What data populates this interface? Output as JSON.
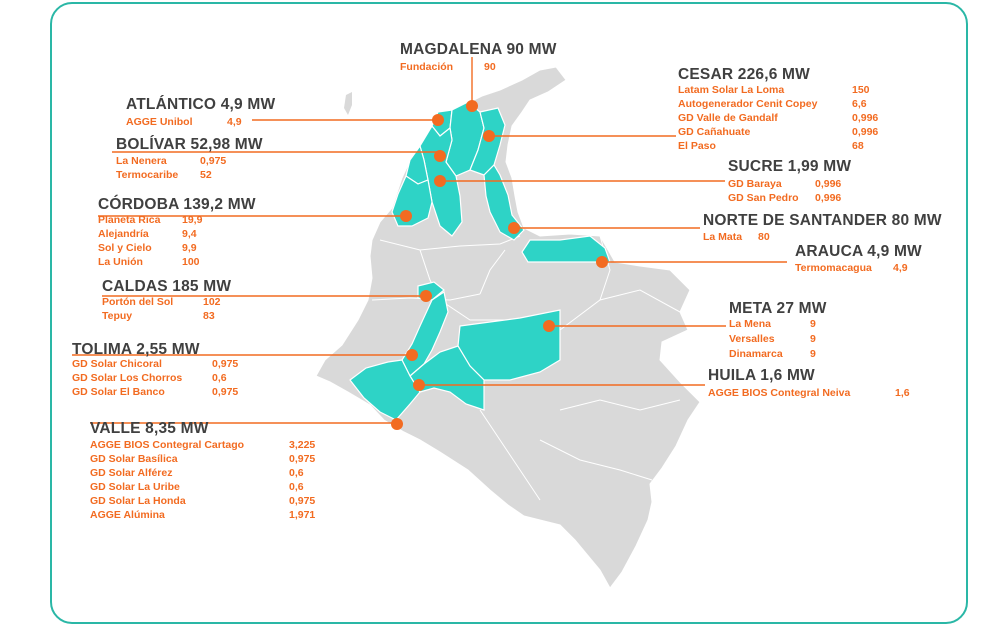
{
  "colors": {
    "frame": "#2ab7a6",
    "highlight": "#2ed3c6",
    "land": "#d9d9d9",
    "leader": "#f26b21",
    "title": "#404040",
    "entry": "#f26b21"
  },
  "regions": [
    {
      "id": "magdalena",
      "title": "MAGDALENA 90 MW",
      "entries": [
        {
          "name": "Fundación",
          "value": "90"
        }
      ]
    },
    {
      "id": "cesar",
      "title": "CESAR 226,6 MW",
      "entries": [
        {
          "name": "Latam Solar La Loma",
          "value": "150"
        },
        {
          "name": "Autogenerador Cenit Copey",
          "value": "6,6"
        },
        {
          "name": "GD Valle de Gandalf",
          "value": "0,996"
        },
        {
          "name": "GD Cañahuate",
          "value": "0,996"
        },
        {
          "name": "El Paso",
          "value": "68"
        }
      ]
    },
    {
      "id": "atlantico",
      "title": "ATLÁNTICO 4,9 MW",
      "entries": [
        {
          "name": "AGGE Unibol",
          "value": "4,9"
        }
      ]
    },
    {
      "id": "bolivar",
      "title": "BOLÍVAR 52,98 MW",
      "entries": [
        {
          "name": "La Nenera",
          "value": "0,975"
        },
        {
          "name": "Termocaribe",
          "value": "52"
        }
      ]
    },
    {
      "id": "sucre",
      "title": "SUCRE 1,99 MW",
      "entries": [
        {
          "name": "GD Baraya",
          "value": "0,996"
        },
        {
          "name": "GD San Pedro",
          "value": "0,996"
        }
      ]
    },
    {
      "id": "cordoba",
      "title": "CÓRDOBA 139,2 MW",
      "entries": [
        {
          "name": "Planeta Rica",
          "value": "19,9"
        },
        {
          "name": "Alejandría",
          "value": "9,4"
        },
        {
          "name": "Sol y Cielo",
          "value": "9,9"
        },
        {
          "name": "La Unión",
          "value": "100"
        }
      ]
    },
    {
      "id": "norte_santander",
      "title": "NORTE DE SANTANDER 80 MW",
      "entries": [
        {
          "name": "La Mata",
          "value": "80"
        }
      ]
    },
    {
      "id": "arauca",
      "title": "ARAUCA 4,9 MW",
      "entries": [
        {
          "name": "Termomacagua",
          "value": "4,9"
        }
      ]
    },
    {
      "id": "caldas",
      "title": "CALDAS 185 MW",
      "entries": [
        {
          "name": "Portón del Sol",
          "value": "102"
        },
        {
          "name": "Tepuy",
          "value": "83"
        }
      ]
    },
    {
      "id": "meta",
      "title": "META 27 MW",
      "entries": [
        {
          "name": "La Mena",
          "value": "9"
        },
        {
          "name": "Versalles",
          "value": "9"
        },
        {
          "name": "Dinamarca",
          "value": "9"
        }
      ]
    },
    {
      "id": "tolima",
      "title": "TOLIMA 2,55 MW",
      "entries": [
        {
          "name": "GD Solar Chicoral",
          "value": "0,975"
        },
        {
          "name": "GD Solar Los Chorros",
          "value": "0,6"
        },
        {
          "name": "GD Solar El Banco",
          "value": "0,975"
        }
      ]
    },
    {
      "id": "huila",
      "title": "HUILA 1,6 MW",
      "entries": [
        {
          "name": "AGGE BIOS Contegral Neiva",
          "value": "1,6"
        }
      ]
    },
    {
      "id": "valle",
      "title": "VALLE 8,35 MW",
      "entries": [
        {
          "name": "AGGE BIOS Contegral Cartago",
          "value": "3,225"
        },
        {
          "name": "GD Solar Basílica",
          "value": "0,975"
        },
        {
          "name": "GD Solar Alférez",
          "value": "0,6"
        },
        {
          "name": "GD Solar La Uribe",
          "value": "0,6"
        },
        {
          "name": "GD Solar La Honda",
          "value": "0,975"
        },
        {
          "name": "AGGE Alúmina",
          "value": "1,971"
        }
      ]
    }
  ]
}
